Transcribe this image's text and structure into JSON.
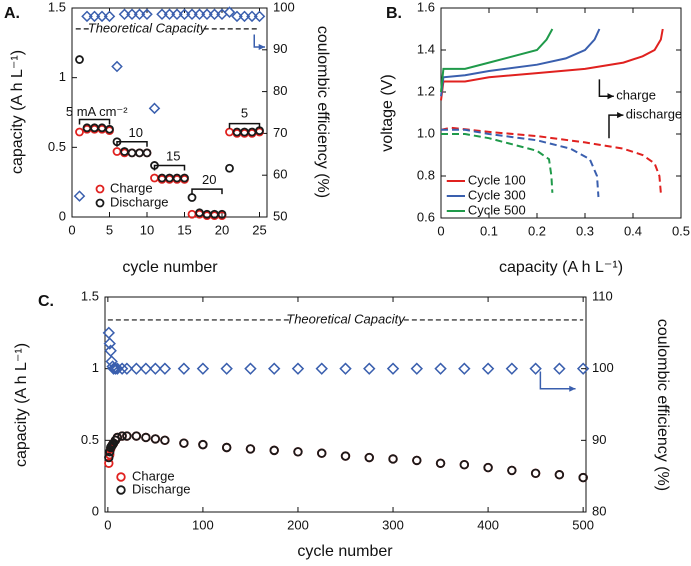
{
  "chart_data": [
    {
      "type": "scatter",
      "panel_label": "A.",
      "xlabel": "cycle number",
      "ylabel": "capacity (A h L⁻¹)",
      "y2label": "coulombic efficiency (%)",
      "x": [
        1,
        2,
        3,
        4,
        5,
        6,
        7,
        8,
        9,
        10,
        11,
        12,
        13,
        14,
        15,
        16,
        17,
        18,
        19,
        20,
        21,
        22,
        23,
        24,
        25
      ],
      "xlim": [
        0,
        26
      ],
      "xticks": [
        0,
        5,
        10,
        15,
        20,
        25
      ],
      "ylim": [
        0,
        1.5
      ],
      "yticks": [
        0,
        0.5,
        1,
        1.5
      ],
      "y2lim": [
        50,
        100
      ],
      "y2ticks": [
        50,
        60,
        70,
        80,
        90,
        100
      ],
      "reference_line": {
        "value": 1.35,
        "label": "Theoretical Capacity"
      },
      "annotations": [
        "5 mA cm⁻²",
        "10",
        "15",
        "20",
        "5"
      ],
      "legend": "lower left",
      "series": [
        {
          "name": "Charge",
          "color": "#e0211f",
          "marker": "circle",
          "values": [
            0.61,
            0.63,
            0.63,
            0.63,
            0.62,
            0.47,
            0.46,
            0.46,
            0.46,
            0.46,
            0.28,
            0.27,
            0.27,
            0.27,
            0.27,
            0.02,
            0.02,
            0.01,
            0.01,
            0.01,
            0.61,
            0.6,
            0.6,
            0.6,
            0.61
          ]
        },
        {
          "name": "Discharge",
          "color": "#1a1a1a",
          "marker": "circle",
          "values": [
            1.13,
            0.64,
            0.64,
            0.64,
            0.63,
            0.54,
            0.47,
            0.46,
            0.46,
            0.46,
            0.37,
            0.28,
            0.28,
            0.28,
            0.28,
            0.14,
            0.03,
            0.02,
            0.02,
            0.02,
            0.35,
            0.61,
            0.61,
            0.61,
            0.62
          ]
        },
        {
          "color": "#3a5fae",
          "marker": "diamond",
          "axis": "y2",
          "values": [
            55,
            98,
            98,
            98,
            98,
            86,
            98.5,
            98.5,
            98.5,
            98.5,
            76,
            98.5,
            98.5,
            98.5,
            98.5,
            98.5,
            98.5,
            98.5,
            98.5,
            98.5,
            99,
            98,
            98,
            98,
            98
          ]
        }
      ]
    },
    {
      "type": "line",
      "panel_label": "B.",
      "xlabel": "capacity (A h L⁻¹)",
      "ylabel": "voltage (V)",
      "xlim": [
        0,
        0.5
      ],
      "xticks": [
        0,
        0.1,
        0.2,
        0.3,
        0.4,
        0.5
      ],
      "ylim": [
        0.6,
        1.6
      ],
      "yticks": [
        0.6,
        0.8,
        {
          "value": 1,
          "label": "1.0"
        },
        1.2,
        1.4,
        1.6
      ],
      "annotations": [
        "charge",
        "discharge"
      ],
      "legend": "lower left",
      "series": [
        {
          "name": "Cycle 100",
          "color": "#e0211f",
          "charge": {
            "x": [
              0,
              0.005,
              0.05,
              0.1,
              0.2,
              0.3,
              0.38,
              0.42,
              0.445,
              0.458,
              0.462
            ],
            "values": [
              1.16,
              1.25,
              1.25,
              1.27,
              1.29,
              1.31,
              1.34,
              1.37,
              1.4,
              1.45,
              1.5
            ]
          },
          "discharge": {
            "x": [
              0,
              0.02,
              0.1,
              0.2,
              0.3,
              0.38,
              0.42,
              0.445,
              0.455,
              0.458
            ],
            "values": [
              1.02,
              1.03,
              1.01,
              0.99,
              0.96,
              0.93,
              0.9,
              0.86,
              0.8,
              0.72
            ]
          }
        },
        {
          "name": "Cycle 300",
          "color": "#3a5fae",
          "charge": {
            "x": [
              0,
              0.005,
              0.05,
              0.1,
              0.2,
              0.26,
              0.3,
              0.32,
              0.33
            ],
            "values": [
              1.18,
              1.27,
              1.28,
              1.3,
              1.33,
              1.36,
              1.4,
              1.45,
              1.5
            ]
          },
          "discharge": {
            "x": [
              0,
              0.05,
              0.1,
              0.2,
              0.27,
              0.31,
              0.325,
              0.328
            ],
            "values": [
              1.02,
              1.02,
              1.0,
              0.97,
              0.93,
              0.88,
              0.8,
              0.7
            ]
          }
        },
        {
          "name": "Cycle 500",
          "color": "#1f9a4a",
          "charge": {
            "x": [
              0,
              0.005,
              0.05,
              0.1,
              0.15,
              0.2,
              0.22,
              0.232
            ],
            "values": [
              1.2,
              1.31,
              1.31,
              1.34,
              1.37,
              1.4,
              1.45,
              1.5
            ]
          },
          "discharge": {
            "x": [
              0,
              0.05,
              0.1,
              0.15,
              0.2,
              0.225,
              0.23,
              0.232
            ],
            "values": [
              1.0,
              1.0,
              0.98,
              0.95,
              0.92,
              0.88,
              0.8,
              0.72
            ]
          }
        }
      ]
    },
    {
      "type": "scatter",
      "panel_label": "C.",
      "xlabel": "cycle number",
      "ylabel": "capacity (A h L⁻¹)",
      "y2label": "coulombic efficiency (%)",
      "x": [
        1,
        2,
        3,
        4,
        5,
        6,
        8,
        10,
        15,
        20,
        30,
        40,
        50,
        60,
        80,
        100,
        125,
        150,
        175,
        200,
        225,
        250,
        275,
        300,
        325,
        350,
        375,
        400,
        425,
        450,
        475,
        500
      ],
      "xlim": [
        -3,
        503
      ],
      "xticks": [
        0,
        100,
        200,
        300,
        400,
        500
      ],
      "ylim": [
        0,
        1.5
      ],
      "yticks": [
        0,
        0.5,
        1,
        1.5
      ],
      "y2lim": [
        80,
        110
      ],
      "y2ticks": [
        80,
        90,
        100,
        110
      ],
      "reference_line": {
        "value": 1.34,
        "label": "Theoretical Capacity"
      },
      "legend": "lower left",
      "series": [
        {
          "name": "Charge",
          "color": "#e0211f",
          "marker": "circle",
          "values": [
            0.34,
            0.4,
            0.44,
            0.46,
            0.47,
            0.48,
            0.5,
            0.52,
            0.53,
            0.53,
            0.53,
            0.52,
            0.51,
            0.5,
            0.48,
            0.47,
            0.45,
            0.44,
            0.43,
            0.42,
            0.41,
            0.39,
            0.38,
            0.37,
            0.36,
            0.34,
            0.33,
            0.31,
            0.29,
            0.27,
            0.26,
            0.24
          ]
        },
        {
          "name": "Discharge",
          "color": "#1a1a1a",
          "marker": "circle",
          "values": [
            0.38,
            0.42,
            0.45,
            0.46,
            0.47,
            0.48,
            0.5,
            0.52,
            0.53,
            0.53,
            0.53,
            0.52,
            0.51,
            0.5,
            0.48,
            0.47,
            0.45,
            0.44,
            0.43,
            0.42,
            0.41,
            0.39,
            0.38,
            0.37,
            0.36,
            0.34,
            0.33,
            0.31,
            0.29,
            0.27,
            0.26,
            0.24
          ]
        },
        {
          "color": "#3a5fae",
          "marker": "diamond",
          "axis": "y2",
          "values": [
            105,
            103.5,
            102.5,
            101,
            100.3,
            100,
            100,
            100,
            100,
            100,
            100,
            100,
            100,
            100,
            100,
            100,
            100,
            100,
            100,
            100,
            100,
            100,
            100,
            100,
            100,
            100,
            100,
            100,
            100,
            100,
            100,
            100
          ]
        }
      ]
    }
  ]
}
